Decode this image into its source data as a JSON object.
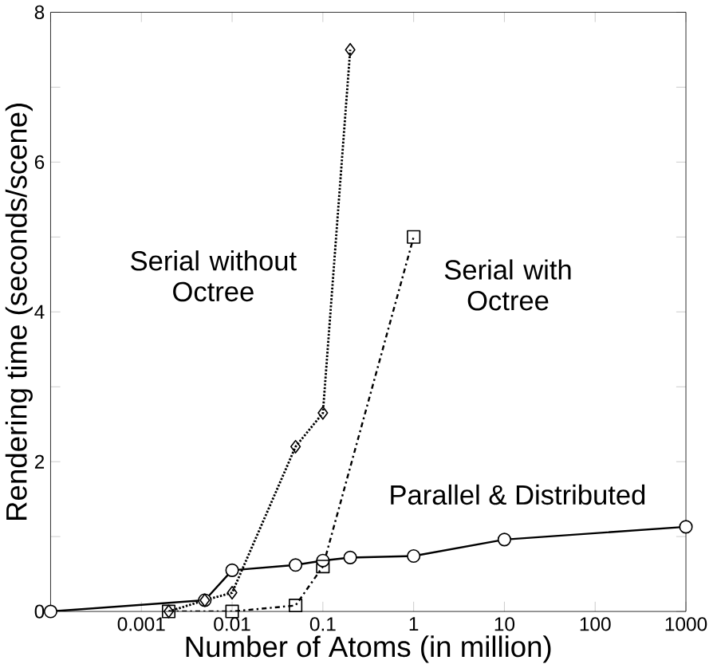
{
  "chart_data": {
    "type": "line",
    "xlabel": "Number of Atoms (in million)",
    "ylabel": "Rendering time (seconds/scene)",
    "log": "x",
    "xlim": [
      0.0001,
      1000
    ],
    "ylim": [
      0,
      8
    ],
    "xticks": [
      {
        "value": 0.0001,
        "label": null
      },
      0.001,
      0.01,
      0.1,
      1,
      10,
      100,
      1000
    ],
    "yticks": [
      0,
      {
        "value": 1,
        "label": null
      },
      2,
      {
        "value": 3,
        "label": null
      },
      4,
      {
        "value": 5,
        "label": null
      },
      6,
      {
        "value": 7,
        "label": null
      },
      8
    ],
    "series": [
      {
        "name": "Parallel & Distributed",
        "color": "#000000",
        "marker": "circle",
        "line_style": "solid",
        "x": [
          0.0001,
          0.005,
          0.01,
          0.05,
          0.1,
          0.2,
          1,
          10,
          1000
        ],
        "values": [
          0,
          0.15,
          0.55,
          0.62,
          0.68,
          0.72,
          0.74,
          0.96,
          1.13
        ]
      },
      {
        "name": "Serial without Octree",
        "color": "#000000",
        "marker": "diamond",
        "line_style": "dotted",
        "x": [
          0.002,
          0.005,
          0.01,
          0.05,
          0.1,
          0.2
        ],
        "values": [
          0,
          0.15,
          0.25,
          2.2,
          2.65,
          7.5
        ]
      },
      {
        "name": "Serial with Octree",
        "color": "#000000",
        "marker": "square",
        "line_style": "dashdot",
        "x": [
          0.002,
          0.01,
          0.05,
          0.1,
          1
        ],
        "values": [
          0,
          0,
          0.08,
          0.6,
          5.0
        ]
      }
    ]
  }
}
